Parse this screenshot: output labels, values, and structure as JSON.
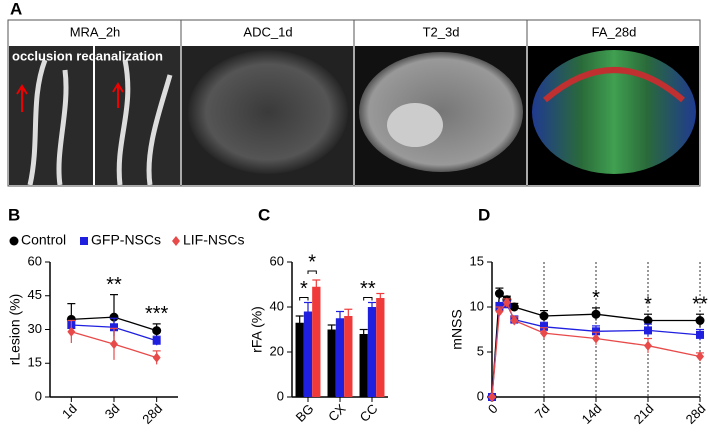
{
  "panel_labels": [
    "A",
    "B",
    "C",
    "D"
  ],
  "images": [
    {
      "title": "MRA_2h",
      "annotation": "occlusion recanalization"
    },
    {
      "title": "ADC_1d"
    },
    {
      "title": "T2_3d"
    },
    {
      "title": "FA_28d"
    }
  ],
  "chart_data": [
    {
      "type": "line",
      "ylabel": "rLesion (%)",
      "categories": [
        "1d",
        "3d",
        "28d"
      ],
      "ylim": [
        0,
        60
      ],
      "yticks": [
        0,
        15,
        30,
        45,
        60
      ],
      "series": [
        {
          "name": "Control",
          "color": "#000000",
          "marker": "circle",
          "values": [
            34.5,
            35.5,
            29.5
          ],
          "errors": [
            7,
            10,
            3
          ]
        },
        {
          "name": "GFP-NSCs",
          "color": "#1f1fe0",
          "marker": "square",
          "values": [
            32,
            31,
            25
          ],
          "errors": [
            2,
            4,
            2
          ]
        },
        {
          "name": "LIF-NSCs",
          "color": "#e84a4a",
          "marker": "diamond",
          "values": [
            29,
            23.5,
            17.5
          ],
          "errors": [
            5,
            7,
            3
          ]
        }
      ],
      "significance": [
        null,
        "**",
        "***"
      ]
    },
    {
      "type": "bar",
      "ylabel": "rFA (%)",
      "categories": [
        "BG",
        "CX",
        "CC"
      ],
      "ylim": [
        0,
        60
      ],
      "yticks": [
        0,
        20,
        40,
        60
      ],
      "series": [
        {
          "name": "Control",
          "color": "#000000",
          "values": [
            33,
            30,
            28
          ],
          "errors": [
            3,
            2,
            2
          ]
        },
        {
          "name": "GFP-NSCs",
          "color": "#1f1fe0",
          "values": [
            38,
            35,
            40
          ],
          "errors": [
            4,
            3,
            2
          ]
        },
        {
          "name": "LIF-NSCs",
          "color": "#f03a3a",
          "values": [
            49,
            36,
            44
          ],
          "errors": [
            3,
            3,
            2
          ]
        }
      ],
      "significance": [
        [
          "*",
          "*"
        ],
        null,
        [
          "**"
        ]
      ]
    },
    {
      "type": "line",
      "ylabel": "mNSS",
      "x": [
        0,
        1,
        2,
        3,
        7,
        14,
        21,
        28
      ],
      "xlim": [
        0,
        28
      ],
      "xticks": [
        0,
        {
          "value": 7,
          "label": "7d"
        },
        {
          "value": 14,
          "label": "14d"
        },
        {
          "value": 21,
          "label": "21d"
        },
        {
          "value": 28,
          "label": "28d"
        }
      ],
      "ylim": [
        0,
        15
      ],
      "yticks": [
        0,
        5,
        10,
        15
      ],
      "vlines": true,
      "series": [
        {
          "name": "Control",
          "color": "#000000",
          "marker": "circle",
          "values": [
            0,
            11.5,
            10.8,
            10,
            9,
            9.2,
            8.5,
            8.5
          ],
          "errors": [
            0,
            0.6,
            0.4,
            0.4,
            0.6,
            0.7,
            0.7,
            0.7
          ]
        },
        {
          "name": "GFP-NSCs",
          "color": "#1f1fe0",
          "marker": "square",
          "values": [
            0,
            10,
            10.3,
            8.6,
            7.8,
            7.3,
            7.4,
            6.9
          ],
          "errors": [
            0,
            0.5,
            0.4,
            0.4,
            0.5,
            0.6,
            0.7,
            0.6
          ]
        },
        {
          "name": "LIF-NSCs",
          "color": "#e84a4a",
          "marker": "diamond",
          "values": [
            0,
            9.5,
            10.5,
            8.5,
            7.1,
            6.5,
            5.7,
            4.5
          ],
          "errors": [
            0,
            0.5,
            0.4,
            0.4,
            0.6,
            0.7,
            0.8,
            0.4
          ]
        }
      ],
      "significance": [
        null,
        null,
        null,
        null,
        null,
        "*",
        "*",
        "**"
      ]
    }
  ]
}
